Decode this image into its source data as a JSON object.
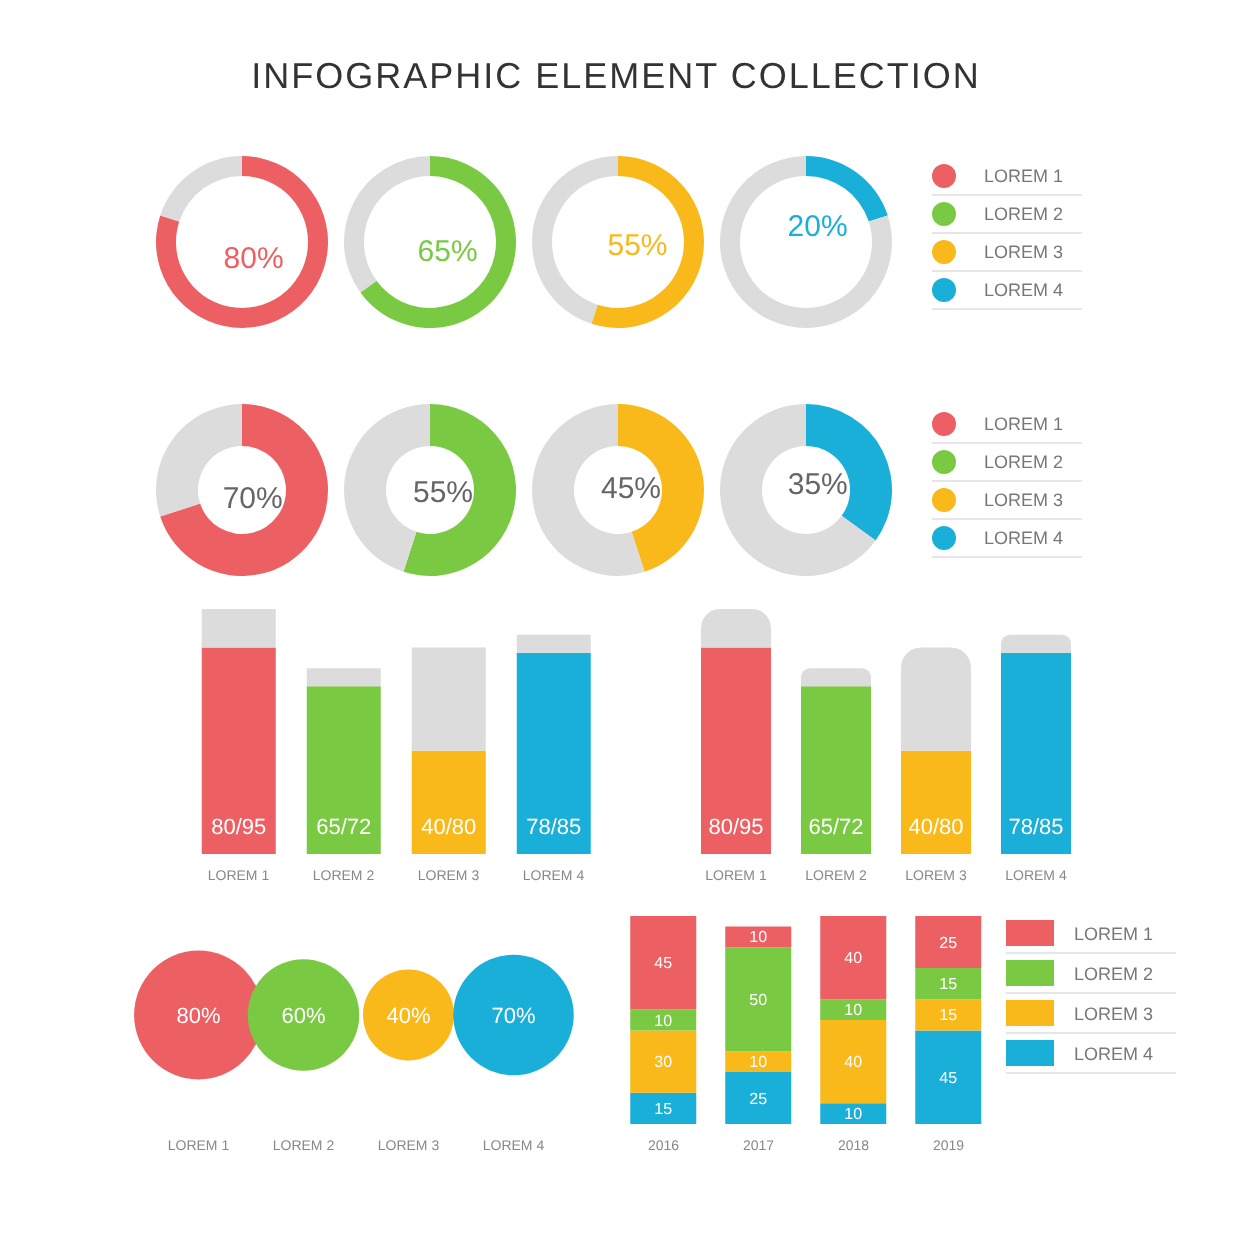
{
  "chart_data": [
    {
      "type": "donut",
      "title": "INFOGRAPHIC ELEMENT COLLECTION",
      "legend": "right",
      "series": [
        {
          "name": "LOREM 1",
          "colors": [
            "#ec5f62",
            "#dcdcdc"
          ],
          "values": [
            80,
            20
          ],
          "value_labels": [
            "80%",
            null
          ]
        },
        {
          "name": "LOREM 2",
          "colors": [
            "#7ac943",
            "#dcdcdc"
          ],
          "values": [
            65,
            35
          ],
          "value_labels": [
            "65%",
            null
          ]
        },
        {
          "name": "LOREM 3",
          "colors": [
            "#f9b91a",
            "#dcdcdc"
          ],
          "values": [
            55,
            45
          ],
          "value_labels": [
            "55%",
            null
          ]
        },
        {
          "name": "LOREM 4",
          "colors": [
            "#1aafd8",
            "#dcdcdc"
          ],
          "values": [
            20,
            80
          ],
          "value_labels": [
            "20%",
            null
          ]
        }
      ]
    },
    {
      "type": "donut",
      "legend": "right",
      "series": [
        {
          "name": "LOREM 1",
          "colors": [
            "#ec5f62",
            "#dcdcdc"
          ],
          "values": [
            70,
            30
          ],
          "value_labels": [
            "70%",
            null
          ]
        },
        {
          "name": "LOREM 2",
          "colors": [
            "#7ac943",
            "#dcdcdc"
          ],
          "values": [
            55,
            45
          ],
          "value_labels": [
            "55%",
            null
          ]
        },
        {
          "name": "LOREM 3",
          "colors": [
            "#f9b91a",
            "#dcdcdc"
          ],
          "values": [
            45,
            55
          ],
          "value_labels": [
            "45%",
            null
          ]
        },
        {
          "name": "LOREM 4",
          "colors": [
            "#1aafd8",
            "#dcdcdc"
          ],
          "values": [
            35,
            65
          ],
          "value_labels": [
            "35%",
            null
          ]
        }
      ]
    },
    {
      "type": "bar",
      "stacked": true,
      "tick_labels": "x",
      "categories": [
        "LOREM 1",
        "LOREM 2",
        "LOREM 3",
        "LOREM 4"
      ],
      "series": [
        {
          "colors": [
            "#ec5f62",
            "#7ac943",
            "#f9b91a",
            "#1aafd8"
          ],
          "values": [
            80,
            65,
            40,
            78
          ],
          "value_labels": [
            "80/95",
            "65/72",
            "40/80",
            "78/85"
          ]
        },
        {
          "colors": [
            "#dcdcdc",
            "#dcdcdc",
            "#dcdcdc",
            "#dcdcdc"
          ],
          "values": [
            15,
            7,
            40,
            7
          ]
        }
      ]
    },
    {
      "type": "bar",
      "stacked": true,
      "tick_labels": "x",
      "categories": [
        "LOREM 1",
        "LOREM 2",
        "LOREM 3",
        "LOREM 4"
      ],
      "series": [
        {
          "colors": [
            "#ec5f62",
            "#7ac943",
            "#f9b91a",
            "#1aafd8"
          ],
          "values": [
            80,
            65,
            40,
            78
          ],
          "value_labels": [
            "80/95",
            "65/72",
            "40/80",
            "78/85"
          ]
        },
        {
          "colors": [
            "#dcdcdc",
            "#dcdcdc",
            "#dcdcdc",
            "#dcdcdc"
          ],
          "values": [
            15,
            7,
            40,
            7
          ]
        }
      ]
    },
    {
      "type": "other",
      "categories": [
        "LOREM 1",
        "LOREM 2",
        "LOREM 3",
        "LOREM 4"
      ],
      "values": [
        80,
        60,
        40,
        70
      ],
      "colors": [
        "#ec5f62",
        "#7ac943",
        "#f9b91a",
        "#1aafd8"
      ],
      "value_labels": [
        "80%",
        "60%",
        "40%",
        "70%"
      ]
    },
    {
      "type": "bar",
      "stacked": true,
      "data_labels": true,
      "legend": "right",
      "tick_labels": "x",
      "categories": [
        "2016",
        "2017",
        "2018",
        "2019"
      ],
      "series": [
        {
          "name": "LOREM 4",
          "color": "#1aafd8",
          "values": [
            15,
            25,
            10,
            45
          ]
        },
        {
          "name": "LOREM 3",
          "color": "#f9b91a",
          "values": [
            30,
            10,
            40,
            15
          ]
        },
        {
          "name": "LOREM 2",
          "color": "#7ac943",
          "values": [
            10,
            50,
            10,
            15
          ]
        },
        {
          "name": "LOREM 1",
          "color": "#ec5f62",
          "values": [
            45,
            10,
            40,
            25
          ]
        }
      ]
    }
  ]
}
